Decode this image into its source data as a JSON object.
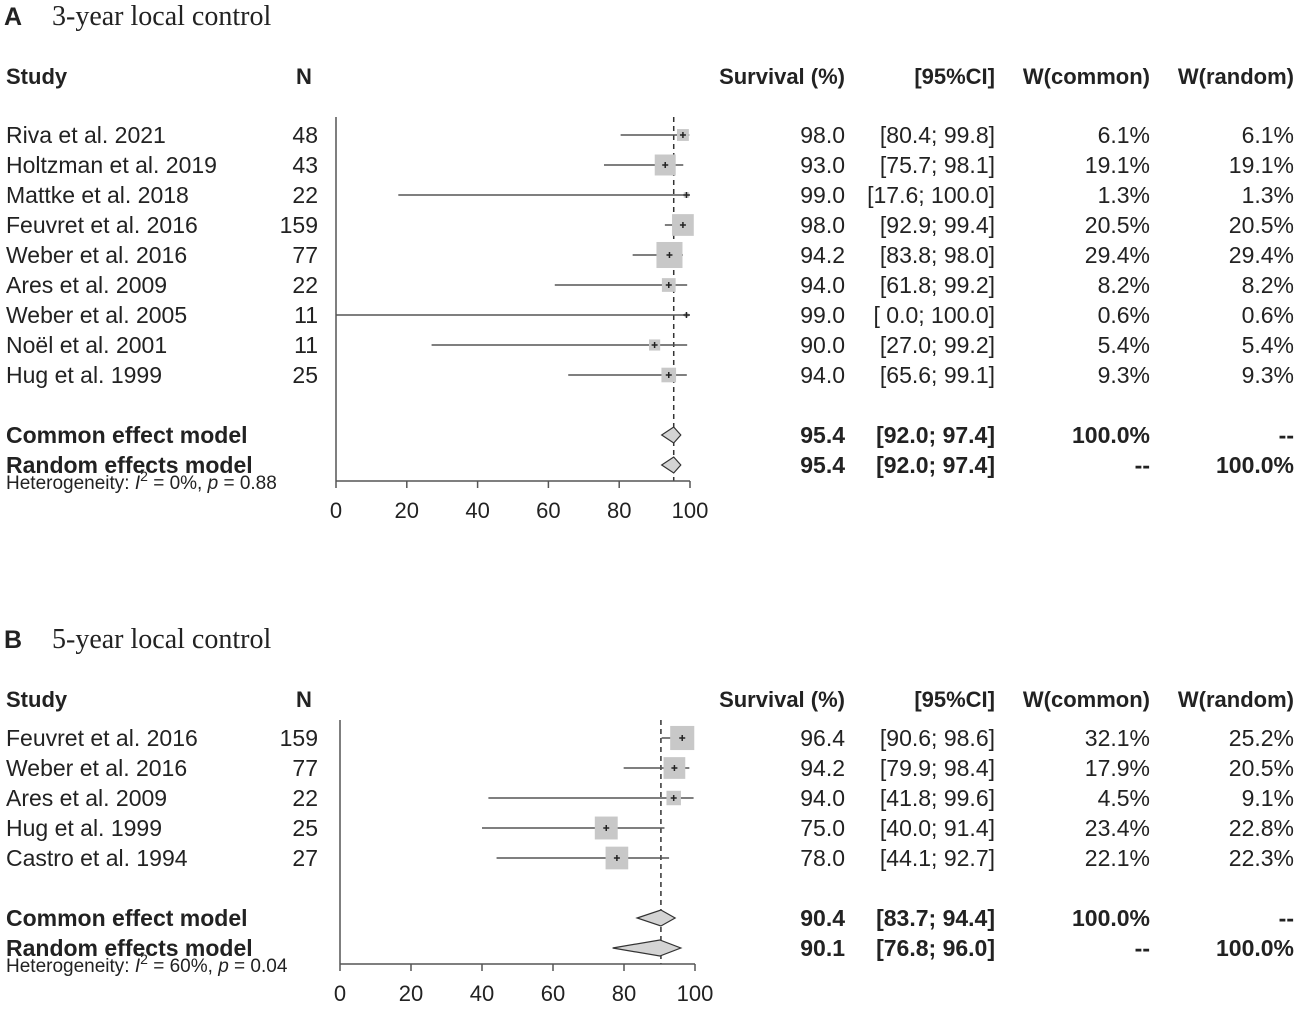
{
  "chart_data": [
    {
      "type": "forest",
      "panel_label": "A",
      "title": "3-year local control",
      "headers": {
        "study": "Study",
        "n": "N",
        "effect": "Survival (%)",
        "ci": "[95%CI]",
        "w_common": "W(common)",
        "w_random": "W(random)"
      },
      "xlim": [
        0,
        100
      ],
      "ticks": [
        "0",
        "20",
        "40",
        "60",
        "80",
        "100"
      ],
      "reference_line": 95.4,
      "studies": [
        {
          "study": "Riva et al. 2021",
          "n": "48",
          "est": 98.0,
          "lo": 80.4,
          "hi": 99.8,
          "est_text": "98.0",
          "ci_text": "[80.4; 99.8]",
          "w_common": "6.1%",
          "w_random": "6.1%",
          "weight": 6.1
        },
        {
          "study": "Holtzman et al. 2019",
          "n": "43",
          "est": 93.0,
          "lo": 75.7,
          "hi": 98.1,
          "est_text": "93.0",
          "ci_text": "[75.7; 98.1]",
          "w_common": "19.1%",
          "w_random": "19.1%",
          "weight": 19.1
        },
        {
          "study": "Mattke et al. 2018",
          "n": "22",
          "est": 99.0,
          "lo": 17.6,
          "hi": 100.0,
          "est_text": "99.0",
          "ci_text": "[17.6; 100.0]",
          "w_common": "1.3%",
          "w_random": "1.3%",
          "weight": 1.3
        },
        {
          "study": "Feuvret et al. 2016",
          "n": "159",
          "est": 98.0,
          "lo": 92.9,
          "hi": 99.4,
          "est_text": "98.0",
          "ci_text": "[92.9; 99.4]",
          "w_common": "20.5%",
          "w_random": "20.5%",
          "weight": 20.5
        },
        {
          "study": "Weber et al. 2016",
          "n": "77",
          "est": 94.2,
          "lo": 83.8,
          "hi": 98.0,
          "est_text": "94.2",
          "ci_text": "[83.8; 98.0]",
          "w_common": "29.4%",
          "w_random": "29.4%",
          "weight": 29.4
        },
        {
          "study": "Ares et al. 2009",
          "n": "22",
          "est": 94.0,
          "lo": 61.8,
          "hi": 99.2,
          "est_text": "94.0",
          "ci_text": "[61.8; 99.2]",
          "w_common": "8.2%",
          "w_random": "8.2%",
          "weight": 8.2
        },
        {
          "study": "Weber et al. 2005",
          "n": "11",
          "est": 99.0,
          "lo": 0.0,
          "hi": 100.0,
          "est_text": "99.0",
          "ci_text": "[ 0.0; 100.0]",
          "w_common": "0.6%",
          "w_random": "0.6%",
          "weight": 0.6
        },
        {
          "study": "Noël et al. 2001",
          "n": "11",
          "est": 90.0,
          "lo": 27.0,
          "hi": 99.2,
          "est_text": "90.0",
          "ci_text": "[27.0; 99.2]",
          "w_common": "5.4%",
          "w_random": "5.4%",
          "weight": 5.4
        },
        {
          "study": "Hug et al. 1999",
          "n": "25",
          "est": 94.0,
          "lo": 65.6,
          "hi": 99.1,
          "est_text": "94.0",
          "ci_text": "[65.6; 99.1]",
          "w_common": "9.3%",
          "w_random": "9.3%",
          "weight": 9.3
        }
      ],
      "pooled": [
        {
          "label": "Common effect model",
          "est": 95.4,
          "lo": 92.0,
          "hi": 97.4,
          "est_text": "95.4",
          "ci_text": "[92.0;  97.4]",
          "w_common": "100.0%",
          "w_random": "--"
        },
        {
          "label": "Random effects model",
          "est": 95.4,
          "lo": 92.0,
          "hi": 97.4,
          "est_text": "95.4",
          "ci_text": "[92.0;  97.4]",
          "w_common": "--",
          "w_random": "100.0%"
        }
      ],
      "heterogeneity": {
        "prefix": "Heterogeneity: ",
        "i": "I",
        "sup": "2",
        "mid": " = 0%, ",
        "p": "p",
        "tail": " = 0.88"
      }
    },
    {
      "type": "forest",
      "panel_label": "B",
      "title": "5-year local control",
      "headers": {
        "study": "Study",
        "n": "N",
        "effect": "Survival (%)",
        "ci": "[95%CI]",
        "w_common": "W(common)",
        "w_random": "W(random)"
      },
      "xlim": [
        0,
        100
      ],
      "ticks": [
        "0",
        "20",
        "40",
        "60",
        "80",
        "100"
      ],
      "reference_line": 90.4,
      "studies": [
        {
          "study": "Feuvret et al. 2016",
          "n": "159",
          "est": 96.4,
          "lo": 90.6,
          "hi": 98.6,
          "est_text": "96.4",
          "ci_text": "[90.6; 98.6]",
          "w_common": "32.1%",
          "w_random": "25.2%",
          "weight": 25.2
        },
        {
          "study": "Weber et al. 2016",
          "n": "77",
          "est": 94.2,
          "lo": 79.9,
          "hi": 98.4,
          "est_text": "94.2",
          "ci_text": "[79.9; 98.4]",
          "w_common": "17.9%",
          "w_random": "20.5%",
          "weight": 20.5
        },
        {
          "study": "Ares et al. 2009",
          "n": "22",
          "est": 94.0,
          "lo": 41.8,
          "hi": 99.6,
          "est_text": "94.0",
          "ci_text": "[41.8; 99.6]",
          "w_common": "4.5%",
          "w_random": "9.1%",
          "weight": 9.1
        },
        {
          "study": "Hug et al. 1999",
          "n": "25",
          "est": 75.0,
          "lo": 40.0,
          "hi": 91.4,
          "est_text": "75.0",
          "ci_text": "[40.0; 91.4]",
          "w_common": "23.4%",
          "w_random": "22.8%",
          "weight": 22.8
        },
        {
          "study": "Castro et al. 1994",
          "n": "27",
          "est": 78.0,
          "lo": 44.1,
          "hi": 92.7,
          "est_text": "78.0",
          "ci_text": "[44.1; 92.7]",
          "w_common": "22.1%",
          "w_random": "22.3%",
          "weight": 22.3
        }
      ],
      "pooled": [
        {
          "label": "Common effect model",
          "est": 90.4,
          "lo": 83.7,
          "hi": 94.4,
          "est_text": "90.4",
          "ci_text": "[83.7; 94.4]",
          "w_common": "100.0%",
          "w_random": "--"
        },
        {
          "label": "Random effects model",
          "est": 90.1,
          "lo": 76.8,
          "hi": 96.0,
          "est_text": "90.1",
          "ci_text": "[76.8; 96.0]",
          "w_common": "--",
          "w_random": "100.0%"
        }
      ],
      "heterogeneity": {
        "prefix": "Heterogeneity: ",
        "i": "I",
        "sup": "2",
        "mid": " = 60%, ",
        "p": "p",
        "tail": " = 0.04"
      }
    }
  ],
  "colors": {
    "text": "#222222",
    "box": "#c8c8c8",
    "line": "#555555",
    "diamond": "#d4d4d4"
  }
}
